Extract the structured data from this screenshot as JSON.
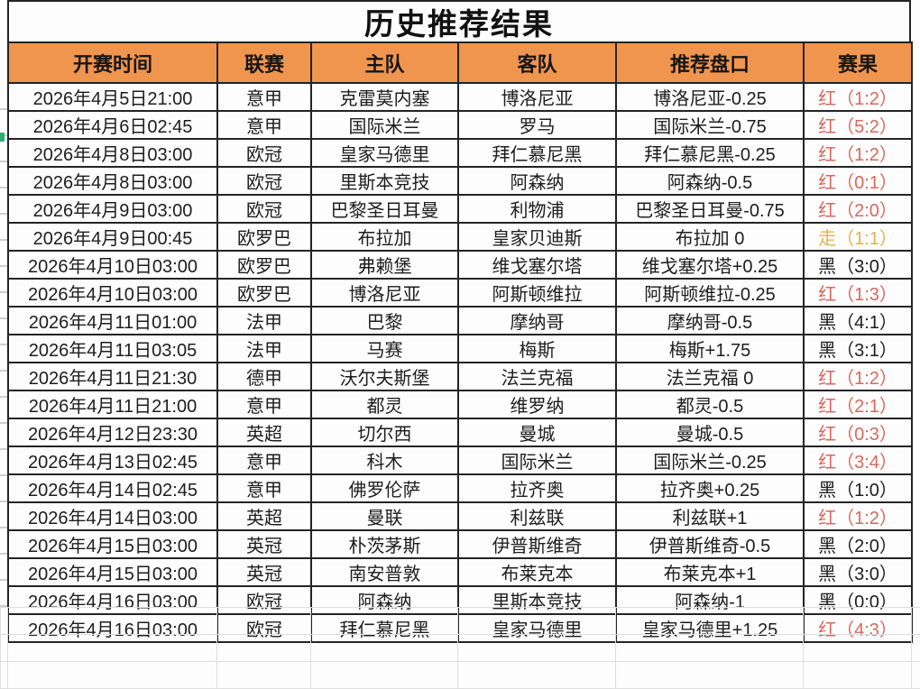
{
  "page": {
    "title": "历史推荐结果"
  },
  "colors": {
    "header_bg": "#F0954E",
    "border_dark": "#242424",
    "grid_faint": "#DEDEDE",
    "text": "#1E1E1E",
    "result_red": "#D9685E",
    "result_yellow": "#E2B44F",
    "result_black": "#1E1E1E",
    "edge_mark_green": "#2FAE76"
  },
  "table": {
    "columns": [
      {
        "key": "time",
        "label": "开赛时间"
      },
      {
        "key": "league",
        "label": "联赛"
      },
      {
        "key": "home",
        "label": "主队"
      },
      {
        "key": "away",
        "label": "客队"
      },
      {
        "key": "handicap",
        "label": "推荐盘口"
      },
      {
        "key": "result",
        "label": "赛果"
      }
    ],
    "rows": [
      {
        "time": "2026年4月5日21:00",
        "league": "意甲",
        "home": "克雷莫内塞",
        "away": "博洛尼亚",
        "handicap": "博洛尼亚-0.25",
        "result": {
          "verdict": "红",
          "score": "1:2",
          "color": "result_red"
        }
      },
      {
        "time": "2026年4月6日02:45",
        "league": "意甲",
        "home": "国际米兰",
        "away": "罗马",
        "handicap": "国际米兰-0.75",
        "result": {
          "verdict": "红",
          "score": "5:2",
          "color": "result_red"
        }
      },
      {
        "time": "2026年4月8日03:00",
        "league": "欧冠",
        "home": "皇家马德里",
        "away": "拜仁慕尼黑",
        "handicap": "拜仁慕尼黑-0.25",
        "result": {
          "verdict": "红",
          "score": "1:2",
          "color": "result_red"
        }
      },
      {
        "time": "2026年4月8日03:00",
        "league": "欧冠",
        "home": "里斯本竞技",
        "away": "阿森纳",
        "handicap": "阿森纳-0.5",
        "result": {
          "verdict": "红",
          "score": "0:1",
          "color": "result_red"
        }
      },
      {
        "time": "2026年4月9日03:00",
        "league": "欧冠",
        "home": "巴黎圣日耳曼",
        "away": "利物浦",
        "handicap": "巴黎圣日耳曼-0.75",
        "result": {
          "verdict": "红",
          "score": "2:0",
          "color": "result_red"
        }
      },
      {
        "time": "2026年4月9日00:45",
        "league": "欧罗巴",
        "home": "布拉加",
        "away": "皇家贝迪斯",
        "handicap": "布拉加 0",
        "result": {
          "verdict": "走",
          "score": "1:1",
          "color": "result_yellow"
        }
      },
      {
        "time": "2026年4月10日03:00",
        "league": "欧罗巴",
        "home": "弗赖堡",
        "away": "维戈塞尔塔",
        "handicap": "维戈塞尔塔+0.25",
        "result": {
          "verdict": "黑",
          "score": "3:0",
          "color": "result_black"
        }
      },
      {
        "time": "2026年4月10日03:00",
        "league": "欧罗巴",
        "home": "博洛尼亚",
        "away": "阿斯顿维拉",
        "handicap": "阿斯顿维拉-0.25",
        "result": {
          "verdict": "红",
          "score": "1:3",
          "color": "result_red"
        }
      },
      {
        "time": "2026年4月11日01:00",
        "league": "法甲",
        "home": "巴黎",
        "away": "摩纳哥",
        "handicap": "摩纳哥-0.5",
        "result": {
          "verdict": "黑",
          "score": "4:1",
          "color": "result_black"
        }
      },
      {
        "time": "2026年4月11日03:05",
        "league": "法甲",
        "home": "马赛",
        "away": "梅斯",
        "handicap": "梅斯+1.75",
        "result": {
          "verdict": "黑",
          "score": "3:1",
          "color": "result_black"
        }
      },
      {
        "time": "2026年4月11日21:30",
        "league": "德甲",
        "home": "沃尔夫斯堡",
        "away": "法兰克福",
        "handicap": "法兰克福 0",
        "result": {
          "verdict": "红",
          "score": "1:2",
          "color": "result_red"
        }
      },
      {
        "time": "2026年4月11日21:00",
        "league": "意甲",
        "home": "都灵",
        "away": "维罗纳",
        "handicap": "都灵-0.5",
        "result": {
          "verdict": "红",
          "score": "2:1",
          "color": "result_red"
        }
      },
      {
        "time": "2026年4月12日23:30",
        "league": "英超",
        "home": "切尔西",
        "away": "曼城",
        "handicap": "曼城-0.5",
        "result": {
          "verdict": "红",
          "score": "0:3",
          "color": "result_red"
        }
      },
      {
        "time": "2026年4月13日02:45",
        "league": "意甲",
        "home": "科木",
        "away": "国际米兰",
        "handicap": "国际米兰-0.25",
        "result": {
          "verdict": "红",
          "score": "3:4",
          "color": "result_red"
        }
      },
      {
        "time": "2026年4月14日02:45",
        "league": "意甲",
        "home": "佛罗伦萨",
        "away": "拉齐奥",
        "handicap": "拉齐奥+0.25",
        "result": {
          "verdict": "黑",
          "score": "1:0",
          "color": "result_black"
        }
      },
      {
        "time": "2026年4月14日03:00",
        "league": "英超",
        "home": "曼联",
        "away": "利兹联",
        "handicap": "利兹联+1",
        "result": {
          "verdict": "红",
          "score": "1:2",
          "color": "result_red"
        }
      },
      {
        "time": "2026年4月15日03:00",
        "league": "英冠",
        "home": "朴茨茅斯",
        "away": "伊普斯维奇",
        "handicap": "伊普斯维奇-0.5",
        "result": {
          "verdict": "黑",
          "score": "2:0",
          "color": "result_black"
        }
      },
      {
        "time": "2026年4月15日03:00",
        "league": "英冠",
        "home": "南安普敦",
        "away": "布莱克本",
        "handicap": "布莱克本+1",
        "result": {
          "verdict": "黑",
          "score": "3:0",
          "color": "result_black"
        }
      },
      {
        "time": "2026年4月16日03:00",
        "league": "欧冠",
        "home": "阿森纳",
        "away": "里斯本竞技",
        "handicap": "阿森纳-1",
        "result": {
          "verdict": "黑",
          "score": "0:0",
          "color": "result_black"
        }
      },
      {
        "time": "2026年4月16日03:00",
        "league": "欧冠",
        "home": "拜仁慕尼黑",
        "away": "皇家马德里",
        "handicap": "皇家马德里+1.25",
        "result": {
          "verdict": "红",
          "score": "4:3",
          "color": "result_red"
        }
      }
    ]
  }
}
